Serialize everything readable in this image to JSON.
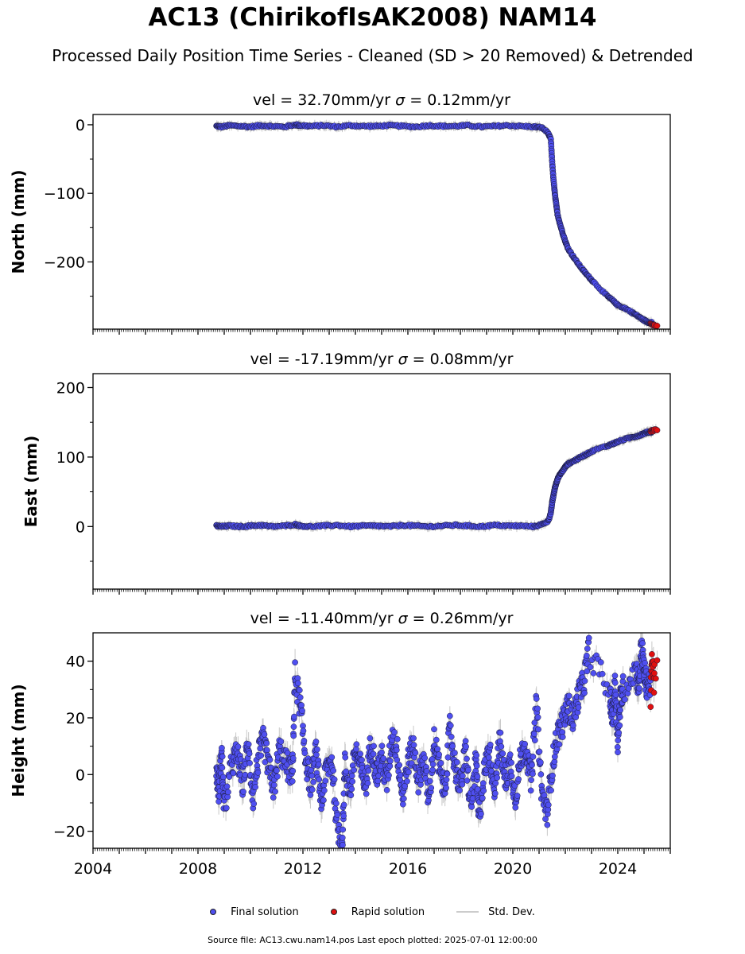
{
  "title": "AC13 (ChirikofIsAK2008) NAM14",
  "subtitle": "Processed Daily Position Time Series - Cleaned (SD > 20 Removed) & Detrended",
  "legend": {
    "final": "Final solution",
    "rapid": "Rapid solution",
    "stddev": "Std. Dev."
  },
  "footer": "Source file: AC13.cwu.nam14.pos  Last epoch plotted: 2025-07-01 12:00:00",
  "colors": {
    "final": "#4f4ff0",
    "rapid": "#e01010",
    "stddev": "#c8c8c8",
    "marker_edge": "#1a1a3a"
  },
  "chart_data": [
    {
      "type": "scatter",
      "panel": "north",
      "title_vel": "vel = 32.70mm/yr",
      "title_sigma": "= 0.12mm/yr",
      "ylabel": "North (mm)",
      "xlim": [
        2004,
        2026
      ],
      "ylim": [
        -298,
        15
      ],
      "yticks": [
        0,
        -100,
        -200
      ],
      "yticklabels": [
        "0",
        "−100",
        "−200"
      ],
      "series": [
        {
          "role": "final",
          "x": [
            2008.7,
            2008.9,
            2009.2,
            2009.6,
            2010.0,
            2010.4,
            2010.8,
            2011.3,
            2011.7,
            2011.9,
            2012.3,
            2012.8,
            2013.3,
            2013.8,
            2014.3,
            2014.8,
            2015.3,
            2015.8,
            2016.3,
            2016.8,
            2017.3,
            2017.8,
            2018.3,
            2018.8,
            2019.3,
            2019.8,
            2020.3,
            2020.8,
            2021.1,
            2021.35,
            2021.45,
            2021.5,
            2021.55,
            2021.6,
            2021.65,
            2021.7,
            2021.8,
            2021.9,
            2022.0,
            2022.1,
            2022.3,
            2022.5,
            2022.7,
            2022.9,
            2023.1,
            2023.6,
            2023.8,
            2024.0,
            2024.3,
            2024.6,
            2024.8,
            2025.0,
            2025.15
          ],
          "y": [
            -2,
            -3,
            -1,
            -2,
            -3,
            -1,
            -2,
            -3,
            0,
            -1,
            -2,
            -1,
            -3,
            -1,
            -2,
            -2,
            -1,
            -2,
            -3,
            -1,
            -2,
            -2,
            -1,
            -3,
            -2,
            -1,
            -2,
            -3,
            -4,
            -12,
            -22,
            -55,
            -80,
            -100,
            -115,
            -130,
            -145,
            -158,
            -170,
            -180,
            -192,
            -203,
            -213,
            -222,
            -230,
            -250,
            -256,
            -263,
            -268,
            -275,
            -280,
            -285,
            -288
          ]
        },
        {
          "role": "rapid",
          "x": [
            2025.25,
            2025.3,
            2025.35,
            2025.4
          ],
          "y": [
            -290,
            -291,
            -292,
            -293
          ]
        }
      ]
    },
    {
      "type": "scatter",
      "panel": "east",
      "title_vel": "vel = -17.19mm/yr",
      "title_sigma": "= 0.08mm/yr",
      "ylabel": "East (mm)",
      "xlim": [
        2004,
        2026
      ],
      "ylim": [
        -90,
        220
      ],
      "yticks": [
        0,
        100,
        200
      ],
      "yticklabels": [
        "0",
        "100",
        "200"
      ],
      "series": [
        {
          "role": "final",
          "x": [
            2008.7,
            2008.9,
            2009.2,
            2009.6,
            2010.0,
            2010.4,
            2010.8,
            2011.3,
            2011.7,
            2011.9,
            2012.3,
            2012.8,
            2013.3,
            2013.8,
            2014.3,
            2014.8,
            2015.3,
            2015.8,
            2016.3,
            2016.8,
            2017.3,
            2017.8,
            2018.3,
            2018.8,
            2019.3,
            2019.8,
            2020.3,
            2020.8,
            2021.1,
            2021.35,
            2021.45,
            2021.5,
            2021.55,
            2021.6,
            2021.65,
            2021.7,
            2021.8,
            2021.9,
            2022.0,
            2022.1,
            2022.3,
            2022.5,
            2022.7,
            2022.9,
            2023.1,
            2023.6,
            2023.8,
            2024.0,
            2024.3,
            2024.6,
            2024.8,
            2025.0,
            2025.15
          ],
          "y": [
            1,
            0,
            1,
            0,
            1,
            2,
            0,
            1,
            3,
            1,
            0,
            1,
            2,
            0,
            1,
            1,
            0,
            2,
            1,
            0,
            1,
            2,
            1,
            0,
            2,
            1,
            1,
            0,
            3,
            8,
            20,
            35,
            45,
            55,
            62,
            68,
            75,
            80,
            86,
            90,
            94,
            98,
            102,
            106,
            110,
            116,
            119,
            122,
            126,
            129,
            131,
            134,
            136
          ]
        },
        {
          "role": "rapid",
          "x": [
            2025.25,
            2025.3,
            2025.35,
            2025.4
          ],
          "y": [
            137,
            138,
            138,
            139
          ]
        }
      ]
    },
    {
      "type": "scatter",
      "panel": "height",
      "title_vel": "vel = -11.40mm/yr",
      "title_sigma": "= 0.26mm/yr",
      "ylabel": "Height (mm)",
      "xlim": [
        2004,
        2026
      ],
      "ylim": [
        -26,
        50
      ],
      "yticks": [
        -20,
        0,
        20,
        40
      ],
      "yticklabels": [
        "−20",
        "0",
        "20",
        "40"
      ],
      "xticks": [
        2004,
        2008,
        2012,
        2016,
        2020,
        2024
      ],
      "xticklabels": [
        "2004",
        "2008",
        "2012",
        "2016",
        "2020",
        "2024"
      ],
      "series": [
        {
          "role": "final",
          "x": [
            2008.7,
            2008.8,
            2008.9,
            2009.0,
            2009.3,
            2009.5,
            2009.7,
            2009.9,
            2010.1,
            2010.3,
            2010.5,
            2010.7,
            2010.9,
            2011.1,
            2011.4,
            2011.6,
            2011.7,
            2011.9,
            2012.1,
            2012.3,
            2012.5,
            2012.7,
            2012.9,
            2013.1,
            2013.3,
            2013.5,
            2013.6,
            2013.8,
            2014.0,
            2014.2,
            2014.4,
            2014.6,
            2014.8,
            2015.0,
            2015.2,
            2015.4,
            2015.6,
            2015.8,
            2016.0,
            2016.2,
            2016.4,
            2016.6,
            2016.8,
            2017.0,
            2017.2,
            2017.4,
            2017.6,
            2017.8,
            2018.0,
            2018.2,
            2018.4,
            2018.6,
            2018.7,
            2018.9,
            2019.1,
            2019.3,
            2019.5,
            2019.7,
            2019.9,
            2020.1,
            2020.3,
            2020.5,
            2020.7,
            2020.9,
            2021.1,
            2021.3,
            2021.5,
            2021.7,
            2021.9,
            2022.1,
            2022.3,
            2022.5,
            2022.7,
            2022.9,
            2023.7,
            2023.8,
            2023.9,
            2024.0,
            2024.1,
            2024.2,
            2024.7,
            2024.8,
            2024.9,
            2025.0,
            2025.1
          ],
          "y": [
            2,
            -6,
            8,
            -12,
            4,
            7,
            -3,
            10,
            -8,
            6,
            12,
            2,
            -5,
            9,
            3,
            0,
            35,
            24,
            6,
            -4,
            8,
            -10,
            2,
            5,
            -18,
            -24,
            3,
            -6,
            9,
            2,
            -4,
            12,
            0,
            6,
            -3,
            14,
            8,
            -8,
            4,
            10,
            -2,
            6,
            -10,
            12,
            2,
            -6,
            16,
            3,
            -4,
            8,
            -12,
            5,
            -16,
            0,
            9,
            -5,
            12,
            -2,
            4,
            -8,
            6,
            10,
            -3,
            25,
            -6,
            -14,
            3,
            14,
            18,
            24,
            20,
            28,
            32,
            44,
            28,
            20,
            32,
            12,
            26,
            30,
            38,
            30,
            46,
            36,
            32
          ]
        },
        {
          "role": "rapid",
          "x": [
            2025.25,
            2025.28,
            2025.3,
            2025.32,
            2025.35,
            2025.38,
            2025.4
          ],
          "y": [
            28,
            32,
            42,
            35,
            38,
            33,
            36
          ]
        }
      ]
    }
  ]
}
